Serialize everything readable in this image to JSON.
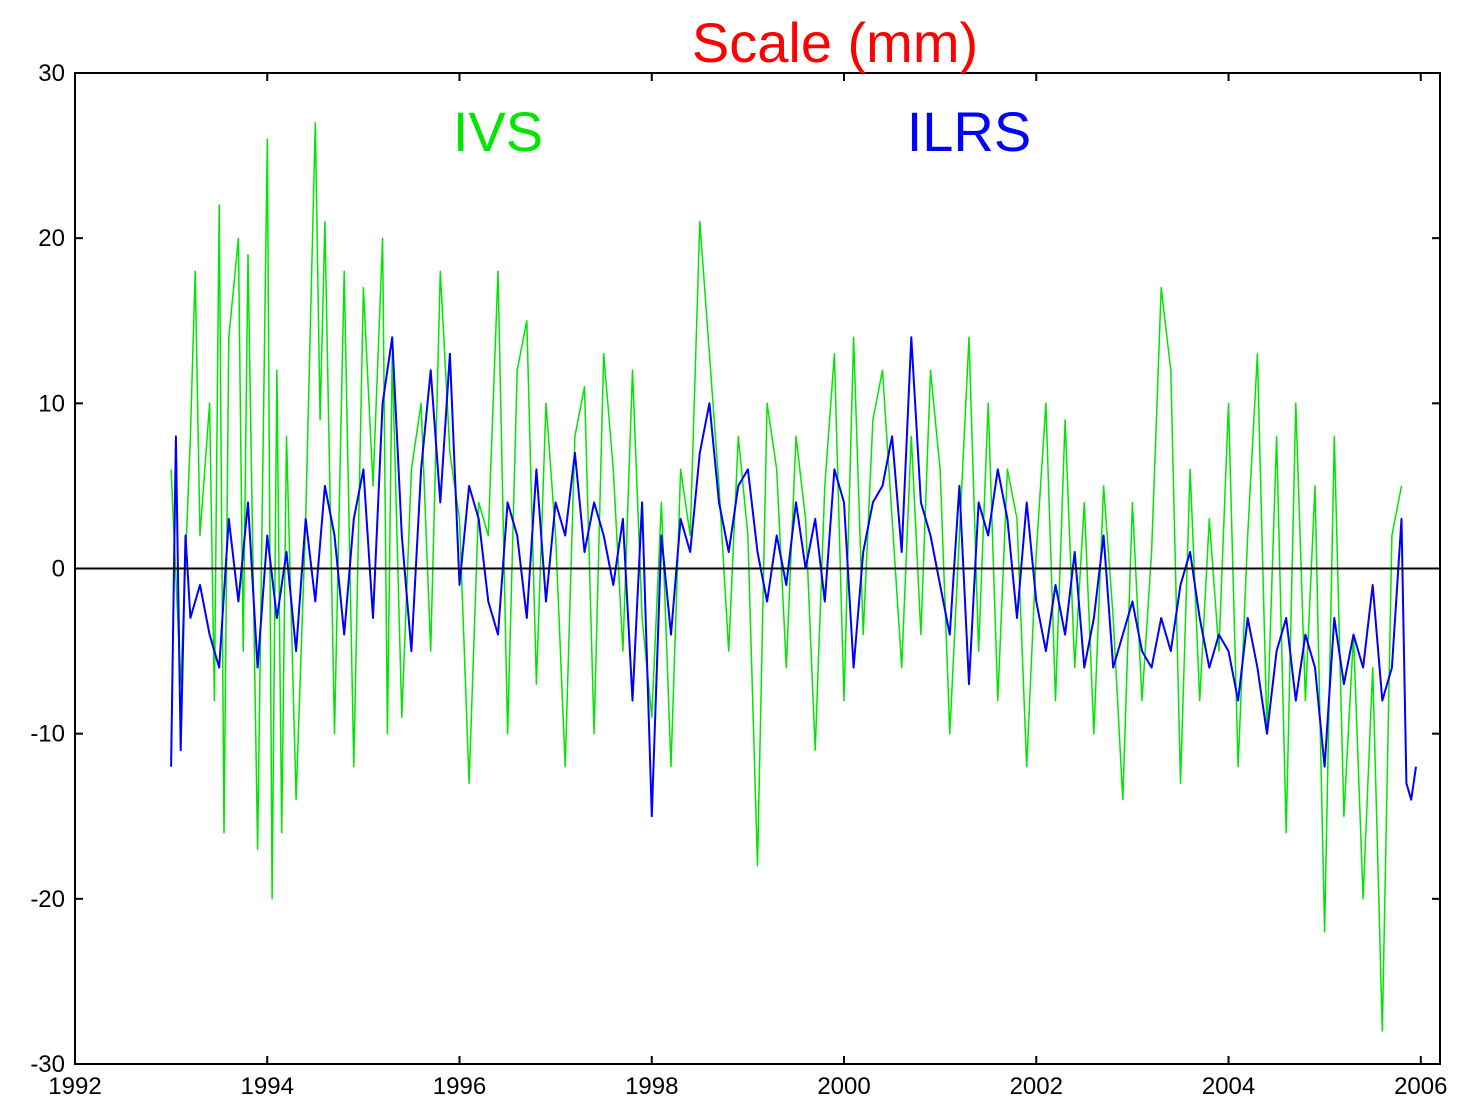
{
  "chart_data": {
    "type": "line",
    "title": "Scale (mm)",
    "xlabel": "",
    "ylabel": "",
    "xlim": [
      1992,
      2006.2
    ],
    "ylim": [
      -30,
      30
    ],
    "x_ticks": [
      1992,
      1994,
      1996,
      1998,
      2000,
      2002,
      2004,
      2006
    ],
    "y_ticks": [
      -30,
      -20,
      -10,
      0,
      10,
      20,
      30
    ],
    "x_tick_labels": [
      "1992",
      "1994",
      "1996",
      "1998",
      "2000",
      "2002",
      "2004",
      "2006"
    ],
    "y_tick_labels": [
      "-30",
      "-20",
      "-10",
      "0",
      "10",
      "20",
      "30"
    ],
    "zero_line": true,
    "grid": false,
    "colors": {
      "title": "#ff0000",
      "IVS": "#00e600",
      "ILRS": "#0000ff",
      "axis": "#000000"
    },
    "series": [
      {
        "name": "IVS",
        "color": "#00e600",
        "x": [
          1993.0,
          1993.1,
          1993.2,
          1993.25,
          1993.3,
          1993.4,
          1993.45,
          1993.5,
          1993.55,
          1993.6,
          1993.7,
          1993.75,
          1993.8,
          1993.9,
          1994.0,
          1994.05,
          1994.1,
          1994.15,
          1994.2,
          1994.3,
          1994.4,
          1994.5,
          1994.55,
          1994.6,
          1994.7,
          1994.8,
          1994.9,
          1995.0,
          1995.1,
          1995.2,
          1995.25,
          1995.3,
          1995.4,
          1995.5,
          1995.6,
          1995.7,
          1995.8,
          1995.9,
          1996.0,
          1996.1,
          1996.2,
          1996.3,
          1996.4,
          1996.5,
          1996.6,
          1996.7,
          1996.8,
          1996.9,
          1997.0,
          1997.1,
          1997.2,
          1997.3,
          1997.4,
          1997.5,
          1997.6,
          1997.7,
          1997.8,
          1997.9,
          1998.0,
          1998.1,
          1998.2,
          1998.3,
          1998.4,
          1998.5,
          1998.6,
          1998.7,
          1998.8,
          1998.9,
          1999.0,
          1999.1,
          1999.2,
          1999.3,
          1999.4,
          1999.5,
          1999.6,
          1999.7,
          1999.8,
          1999.9,
          2000.0,
          2000.1,
          2000.2,
          2000.3,
          2000.4,
          2000.5,
          2000.6,
          2000.7,
          2000.8,
          2000.9,
          2001.0,
          2001.1,
          2001.2,
          2001.3,
          2001.4,
          2001.5,
          2001.6,
          2001.7,
          2001.8,
          2001.9,
          2002.0,
          2002.1,
          2002.2,
          2002.3,
          2002.4,
          2002.5,
          2002.6,
          2002.7,
          2002.8,
          2002.9,
          2003.0,
          2003.1,
          2003.2,
          2003.3,
          2003.4,
          2003.5,
          2003.6,
          2003.7,
          2003.8,
          2003.9,
          2004.0,
          2004.1,
          2004.2,
          2004.3,
          2004.4,
          2004.5,
          2004.6,
          2004.7,
          2004.8,
          2004.9,
          2005.0,
          2005.1,
          2005.2,
          2005.3,
          2005.4,
          2005.5,
          2005.6,
          2005.7,
          2005.8
        ],
        "y": [
          6,
          -7,
          8,
          18,
          2,
          10,
          -8,
          22,
          -16,
          14,
          20,
          -5,
          19,
          -17,
          26,
          -20,
          12,
          -16,
          8,
          -14,
          3,
          27,
          9,
          21,
          -10,
          18,
          -12,
          17,
          5,
          20,
          -10,
          13,
          -9,
          6,
          10,
          -5,
          18,
          7,
          3,
          -13,
          4,
          2,
          18,
          -10,
          12,
          15,
          -7,
          10,
          2,
          -12,
          8,
          11,
          -10,
          13,
          6,
          -5,
          12,
          -3,
          -9,
          4,
          -12,
          6,
          2,
          21,
          13,
          5,
          -5,
          8,
          2,
          -18,
          10,
          6,
          -6,
          8,
          3,
          -11,
          5,
          13,
          -8,
          14,
          -4,
          9,
          12,
          3,
          -6,
          8,
          -4,
          12,
          6,
          -10,
          2,
          14,
          -5,
          10,
          -8,
          6,
          3,
          -12,
          1,
          10,
          -8,
          9,
          -6,
          4,
          -10,
          5,
          -3,
          -14,
          4,
          -8,
          1,
          17,
          12,
          -13,
          6,
          -8,
          3,
          -5,
          10,
          -12,
          2,
          13,
          -10,
          8,
          -16,
          10,
          -8,
          5,
          -22,
          8,
          -15,
          -4,
          -20,
          -6,
          -28,
          2,
          5
        ]
      },
      {
        "name": "ILRS",
        "color": "#0000ff",
        "x": [
          1993.0,
          1993.05,
          1993.1,
          1993.15,
          1993.2,
          1993.3,
          1993.4,
          1993.5,
          1993.6,
          1993.7,
          1993.8,
          1993.9,
          1994.0,
          1994.1,
          1994.2,
          1994.3,
          1994.4,
          1994.5,
          1994.6,
          1994.7,
          1994.8,
          1994.9,
          1995.0,
          1995.1,
          1995.2,
          1995.3,
          1995.4,
          1995.5,
          1995.6,
          1995.7,
          1995.8,
          1995.9,
          1996.0,
          1996.1,
          1996.2,
          1996.3,
          1996.4,
          1996.5,
          1996.6,
          1996.7,
          1996.8,
          1996.9,
          1997.0,
          1997.1,
          1997.2,
          1997.3,
          1997.4,
          1997.5,
          1997.6,
          1997.7,
          1997.8,
          1997.9,
          1998.0,
          1998.1,
          1998.2,
          1998.3,
          1998.4,
          1998.5,
          1998.6,
          1998.7,
          1998.8,
          1998.9,
          1999.0,
          1999.1,
          1999.2,
          1999.3,
          1999.4,
          1999.5,
          1999.6,
          1999.7,
          1999.8,
          1999.9,
          2000.0,
          2000.1,
          2000.2,
          2000.3,
          2000.4,
          2000.5,
          2000.6,
          2000.7,
          2000.8,
          2000.9,
          2001.0,
          2001.1,
          2001.2,
          2001.3,
          2001.4,
          2001.5,
          2001.6,
          2001.7,
          2001.8,
          2001.9,
          2002.0,
          2002.1,
          2002.2,
          2002.3,
          2002.4,
          2002.5,
          2002.6,
          2002.7,
          2002.8,
          2002.9,
          2003.0,
          2003.1,
          2003.2,
          2003.3,
          2003.4,
          2003.5,
          2003.6,
          2003.7,
          2003.8,
          2003.9,
          2004.0,
          2004.1,
          2004.2,
          2004.3,
          2004.4,
          2004.5,
          2004.6,
          2004.7,
          2004.8,
          2004.9,
          2005.0,
          2005.1,
          2005.2,
          2005.3,
          2005.4,
          2005.5,
          2005.6,
          2005.7,
          2005.8,
          2005.85,
          2005.9,
          2005.95
        ],
        "y": [
          -12,
          8,
          -11,
          2,
          -3,
          -1,
          -4,
          -6,
          3,
          -2,
          4,
          -6,
          2,
          -3,
          1,
          -5,
          3,
          -2,
          5,
          2,
          -4,
          3,
          6,
          -3,
          10,
          14,
          2,
          -5,
          6,
          12,
          4,
          13,
          -1,
          5,
          3,
          -2,
          -4,
          4,
          2,
          -3,
          6,
          -2,
          4,
          2,
          7,
          1,
          4,
          2,
          -1,
          3,
          -8,
          4,
          -15,
          2,
          -4,
          3,
          1,
          7,
          10,
          4,
          1,
          5,
          6,
          1,
          -2,
          2,
          -1,
          4,
          0,
          3,
          -2,
          6,
          4,
          -6,
          1,
          4,
          5,
          8,
          1,
          14,
          4,
          2,
          -1,
          -4,
          5,
          -7,
          4,
          2,
          6,
          3,
          -3,
          4,
          -2,
          -5,
          -1,
          -4,
          1,
          -6,
          -3,
          2,
          -6,
          -4,
          -2,
          -5,
          -6,
          -3,
          -5,
          -1,
          1,
          -3,
          -6,
          -4,
          -5,
          -8,
          -3,
          -6,
          -10,
          -5,
          -3,
          -8,
          -4,
          -6,
          -12,
          -3,
          -7,
          -4,
          -6,
          -1,
          -8,
          -6,
          3,
          -13,
          -14,
          -12
        ]
      }
    ],
    "series_labels": [
      {
        "text": "IVS",
        "x": 1996.4,
        "y": 26.5
      },
      {
        "text": "ILRS",
        "x": 2001.3,
        "y": 26.5
      }
    ]
  }
}
